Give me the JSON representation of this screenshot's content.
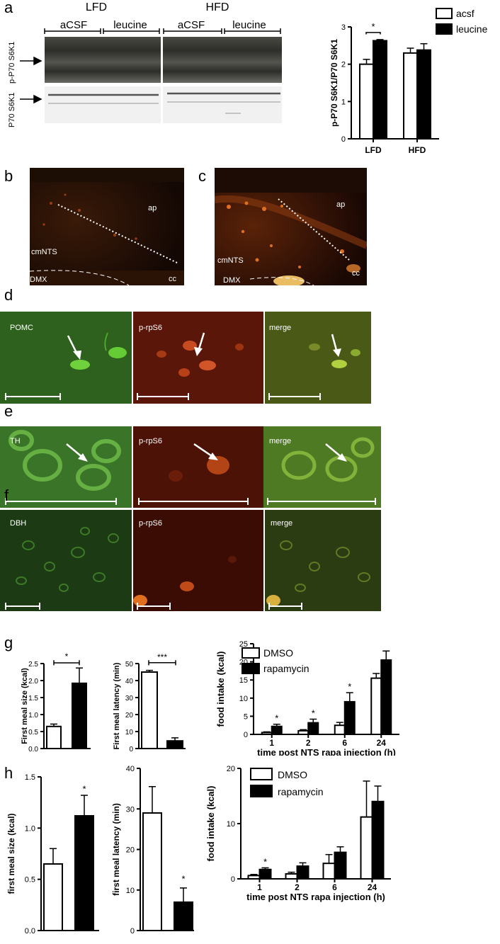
{
  "panels": {
    "a": "a",
    "b": "b",
    "c": "c",
    "d": "d",
    "e": "e",
    "f": "f",
    "g": "g",
    "h": "h"
  },
  "blot": {
    "groups": [
      "LFD",
      "HFD"
    ],
    "subgroups": [
      "aCSF",
      "leucine",
      "aCSF",
      "leucine"
    ],
    "row_labels": [
      "p-P70 S6K1",
      "P70 S6K1"
    ]
  },
  "micro_b": {
    "labels": [
      "ap",
      "cmNTS",
      "DMX",
      "cc"
    ]
  },
  "micro_c": {
    "labels": [
      "ap",
      "cmNTS",
      "DMX",
      "cc"
    ]
  },
  "micro_d": {
    "labels": [
      "POMC",
      "p-rpS6",
      "merge"
    ]
  },
  "micro_e": {
    "labels": [
      "TH",
      "p-rpS6",
      "merge"
    ]
  },
  "micro_f": {
    "labels": [
      "DBH",
      "p-rpS6",
      "merge"
    ]
  },
  "chart_data": [
    {
      "id": "a",
      "type": "bar",
      "categories": [
        "LFD",
        "HFD"
      ],
      "series": [
        {
          "name": "acsf",
          "values": [
            2.0,
            2.3
          ],
          "errors": [
            0.13,
            0.13
          ],
          "fill": "#ffffff"
        },
        {
          "name": "leucine",
          "values": [
            2.63,
            2.38
          ],
          "errors": [
            0.03,
            0.17
          ],
          "fill": "#000000"
        }
      ],
      "ylabel": "p-P70 S6K1/P70 S6K1",
      "ylim": [
        0,
        3
      ],
      "yticks": [
        0,
        1,
        2,
        3
      ],
      "significance": [
        "*"
      ],
      "legend": "top-right"
    },
    {
      "id": "g1",
      "type": "bar",
      "categories": [
        "DMSO",
        "rapamycin"
      ],
      "values": [
        0.65,
        1.92
      ],
      "errors": [
        0.07,
        0.45
      ],
      "ylabel": "First meal size (kcal)",
      "ylim": [
        0,
        2.5
      ],
      "yticks": [
        "0.0",
        "0.5",
        "1.0",
        "1.5",
        "2.0",
        "2.5"
      ],
      "significance": "*"
    },
    {
      "id": "g2",
      "type": "bar",
      "categories": [
        "DMSO",
        "rapamycin"
      ],
      "values": [
        45,
        4.5
      ],
      "errors": [
        1,
        1.8
      ],
      "ylabel": "First meal latency (min)",
      "ylim": [
        0,
        50
      ],
      "yticks": [
        "0",
        "10",
        "20",
        "30",
        "40",
        "50"
      ],
      "significance": "***"
    },
    {
      "id": "g3",
      "type": "bar",
      "categories": [
        "1",
        "2",
        "6",
        "24"
      ],
      "series": [
        {
          "name": "DMSO",
          "values": [
            0.5,
            1.0,
            2.5,
            15.5
          ],
          "errors": [
            0.2,
            0.3,
            0.8,
            1.3
          ],
          "fill": "#ffffff"
        },
        {
          "name": "rapamycin",
          "values": [
            2.2,
            3.2,
            9.0,
            20.5
          ],
          "errors": [
            0.6,
            1.0,
            2.5,
            2.5
          ],
          "fill": "#000000"
        }
      ],
      "xlabel": "time post NTS rapa injection (h)",
      "ylabel": "food intake (kcal)",
      "ylim": [
        0,
        25
      ],
      "yticks": [
        "0",
        "5",
        "10",
        "15",
        "20",
        "25"
      ],
      "significance": [
        "*",
        "*",
        "*"
      ],
      "legend": "top-left"
    },
    {
      "id": "h1",
      "type": "bar",
      "categories": [
        "DMSO",
        "rapamycin"
      ],
      "values": [
        0.65,
        1.12
      ],
      "errors": [
        0.15,
        0.2
      ],
      "ylabel": "first meal size (kcal)",
      "ylim": [
        0,
        1.5
      ],
      "yticks": [
        "0.0",
        "0.5",
        "1.0",
        "1.5"
      ],
      "significance": "*"
    },
    {
      "id": "h2",
      "type": "bar",
      "categories": [
        "DMSO",
        "rapamycin"
      ],
      "values": [
        29,
        7
      ],
      "errors": [
        6.5,
        3.5
      ],
      "ylabel": "first meal latency (min)",
      "ylim": [
        0,
        40
      ],
      "yticks": [
        "0",
        "10",
        "20",
        "30",
        "40"
      ],
      "significance": "*"
    },
    {
      "id": "h3",
      "type": "bar",
      "categories": [
        "1",
        "2",
        "6",
        "24"
      ],
      "series": [
        {
          "name": "DMSO",
          "values": [
            0.6,
            0.9,
            2.8,
            11.2
          ],
          "errors": [
            0.2,
            0.3,
            1.6,
            6.5
          ],
          "fill": "#ffffff"
        },
        {
          "name": "rapamycin",
          "values": [
            1.7,
            2.3,
            4.8,
            14.0
          ],
          "errors": [
            0.3,
            0.6,
            1.0,
            2.8
          ],
          "fill": "#000000"
        }
      ],
      "xlabel": "time post NTS rapa injection (h)",
      "ylabel": "food intake (kcal)",
      "ylim": [
        0,
        20
      ],
      "yticks": [
        "0",
        "10",
        "20"
      ],
      "significance": [
        "*"
      ],
      "legend": "top-left"
    }
  ]
}
